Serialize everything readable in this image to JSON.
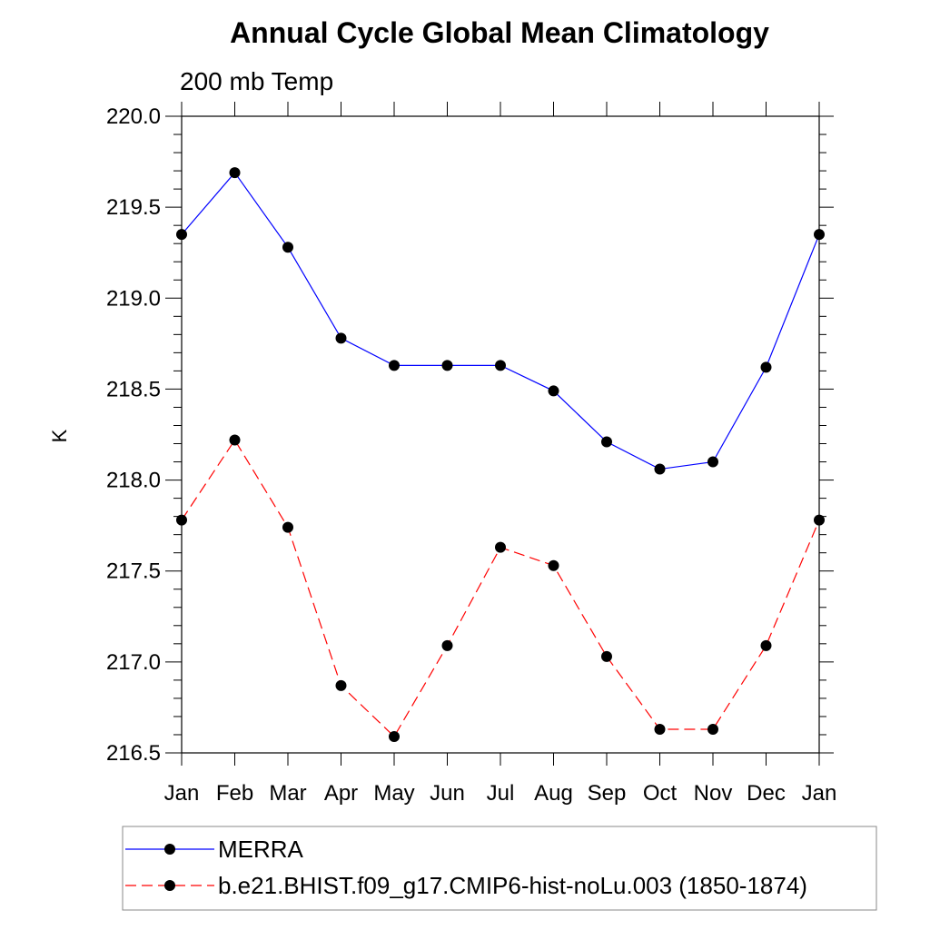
{
  "chart_data": {
    "type": "line",
    "title": "Annual Cycle Global Mean Climatology",
    "subtitle": "200 mb Temp",
    "xlabel": "",
    "ylabel": "K",
    "categories": [
      "Jan",
      "Feb",
      "Mar",
      "Apr",
      "May",
      "Jun",
      "Jul",
      "Aug",
      "Sep",
      "Oct",
      "Nov",
      "Dec",
      "Jan"
    ],
    "ylim": [
      216.5,
      220.0
    ],
    "yticks": [
      "216.5",
      "217.0",
      "217.5",
      "218.0",
      "218.5",
      "219.0",
      "219.5",
      "220.0"
    ],
    "series": [
      {
        "name": "MERRA",
        "color": "#0000ff",
        "dash": "solid",
        "values": [
          219.35,
          219.69,
          219.28,
          218.78,
          218.63,
          218.63,
          218.63,
          218.49,
          218.21,
          218.06,
          218.1,
          218.62,
          219.35
        ]
      },
      {
        "name": "b.e21.BHIST.f09_g17.CMIP6-hist-noLu.003 (1850-1874)",
        "color": "#ff0000",
        "dash": "dashed",
        "values": [
          217.78,
          218.22,
          217.74,
          216.87,
          216.59,
          217.09,
          217.63,
          217.53,
          217.03,
          216.63,
          216.63,
          217.09,
          217.78
        ]
      }
    ],
    "grid": false,
    "legend_position": "bottom"
  }
}
